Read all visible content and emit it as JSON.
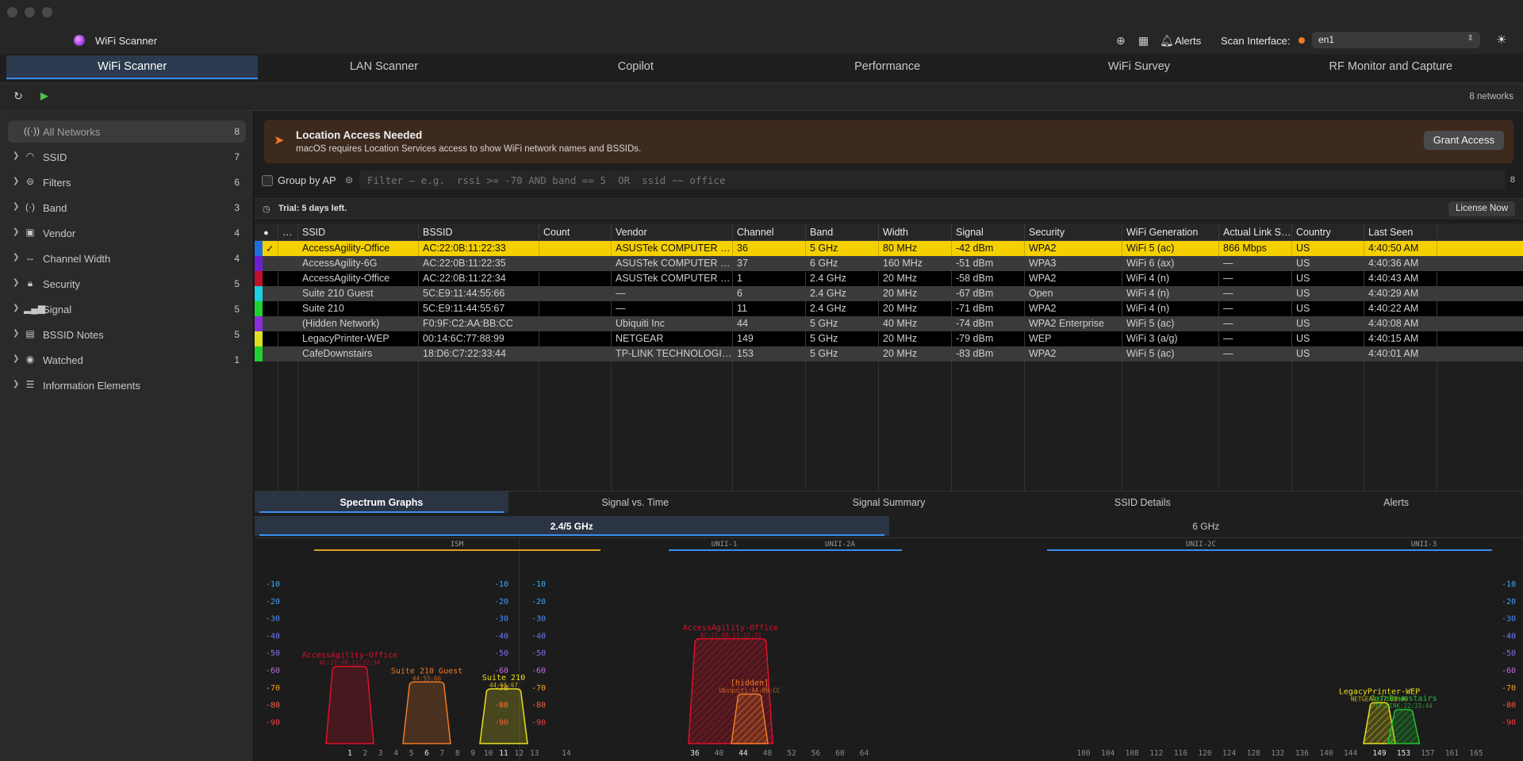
{
  "app": {
    "title": "WiFi Scanner",
    "alerts_label": "Alerts",
    "scan_interface_label": "Scan Interface:",
    "scan_interface_value": "en1"
  },
  "main_tabs": [
    "WiFi Scanner",
    "LAN Scanner",
    "Copilot",
    "Performance",
    "WiFi Survey",
    "RF Monitor and Capture"
  ],
  "toolbar": {
    "network_count": "8 networks"
  },
  "sidebar": {
    "items": [
      {
        "label": "All Networks",
        "count": "8",
        "icon": "antenna-icon"
      },
      {
        "label": "SSID",
        "count": "7",
        "icon": "wifi-icon"
      },
      {
        "label": "Filters",
        "count": "6",
        "icon": "filter-icon"
      },
      {
        "label": "Band",
        "count": "3",
        "icon": "antenna-icon"
      },
      {
        "label": "Vendor",
        "count": "4",
        "icon": "vendor-icon"
      },
      {
        "label": "Channel Width",
        "count": "4",
        "icon": "width-icon"
      },
      {
        "label": "Security",
        "count": "5",
        "icon": "lock-icon"
      },
      {
        "label": "Signal",
        "count": "5",
        "icon": "signal-bars-icon"
      },
      {
        "label": "BSSID Notes",
        "count": "5",
        "icon": "notes-icon"
      },
      {
        "label": "Watched",
        "count": "1",
        "icon": "eye-icon"
      },
      {
        "label": "Information Elements",
        "count": "",
        "icon": "list-icon"
      }
    ]
  },
  "location_banner": {
    "title": "Location Access Needed",
    "subtitle": "macOS requires Location Services access to show WiFi network names and BSSIDs.",
    "button": "Grant Access"
  },
  "filter": {
    "group_by_ap_label": "Group by AP",
    "placeholder": "Filter — e.g.  rssi >= -70 AND band == 5  OR  ssid ~~ office",
    "count": "8"
  },
  "trial": {
    "text": "Trial: 5 days left.",
    "button": "License Now"
  },
  "table": {
    "columns": [
      "",
      "…",
      "SSID",
      "BSSID",
      "Count",
      "Vendor",
      "Channel",
      "Band",
      "Width",
      "Signal",
      "Security",
      "WiFi Generation",
      "Actual Link S…",
      "Country",
      "Last Seen"
    ],
    "rows": [
      {
        "color": "#1e6fd9",
        "check": "✓",
        "ssid": "AccessAgility-Office",
        "bssid": "AC:22:0B:11:22:33",
        "count": "",
        "vendor": "ASUSTek COMPUTER INC.",
        "channel": "36",
        "band": "5 GHz",
        "width": "80 MHz",
        "signal": "-42 dBm",
        "security": "WPA2",
        "gen": "WiFi 5 (ac)",
        "link": "866 Mbps",
        "country": "US",
        "seen": "4:40:50 AM"
      },
      {
        "color": "#6a1fd0",
        "check": "",
        "ssid": "AccessAgility-6G",
        "bssid": "AC:22:0B:11:22:35",
        "count": "",
        "vendor": "ASUSTek COMPUTER INC.",
        "channel": "37",
        "band": "6 GHz",
        "width": "160 MHz",
        "signal": "-51 dBm",
        "security": "WPA3",
        "gen": "WiFi 6 (ax)",
        "link": "—",
        "country": "US",
        "seen": "4:40:36 AM"
      },
      {
        "color": "#c0102a",
        "check": "",
        "ssid": "AccessAgility-Office",
        "bssid": "AC:22:0B:11:22:34",
        "count": "",
        "vendor": "ASUSTek COMPUTER INC.",
        "channel": "1",
        "band": "2.4 GHz",
        "width": "20 MHz",
        "signal": "-58 dBm",
        "security": "WPA2",
        "gen": "WiFi 4 (n)",
        "link": "—",
        "country": "US",
        "seen": "4:40:43 AM"
      },
      {
        "color": "#1ad0e0",
        "check": "",
        "ssid": "Suite 210 Guest",
        "bssid": "5C:E9:11:44:55:66",
        "count": "",
        "vendor": "—",
        "channel": "6",
        "band": "2.4 GHz",
        "width": "20 MHz",
        "signal": "-67 dBm",
        "security": "Open",
        "gen": "WiFi 4 (n)",
        "link": "—",
        "country": "US",
        "seen": "4:40:29 AM"
      },
      {
        "color": "#20d030",
        "check": "",
        "ssid": "Suite 210",
        "bssid": "5C:E9:11:44:55:67",
        "count": "",
        "vendor": "—",
        "channel": "11",
        "band": "2.4 GHz",
        "width": "20 MHz",
        "signal": "-71 dBm",
        "security": "WPA2",
        "gen": "WiFi 4 (n)",
        "link": "—",
        "country": "US",
        "seen": "4:40:22 AM"
      },
      {
        "color": "#8a2fd8",
        "check": "",
        "ssid": "(Hidden Network)",
        "bssid": "F0:9F:C2:AA:BB:CC",
        "count": "",
        "vendor": "Ubiquiti Inc",
        "channel": "44",
        "band": "5 GHz",
        "width": "40 MHz",
        "signal": "-74 dBm",
        "security": "WPA2 Enterprise",
        "gen": "WiFi 5 (ac)",
        "link": "—",
        "country": "US",
        "seen": "4:40:08 AM"
      },
      {
        "color": "#e0e020",
        "check": "",
        "ssid": "LegacyPrinter-WEP",
        "bssid": "00:14:6C:77:88:99",
        "count": "",
        "vendor": "NETGEAR",
        "channel": "149",
        "band": "5 GHz",
        "width": "20 MHz",
        "signal": "-79 dBm",
        "security": "WEP",
        "gen": "WiFi 3 (a/g)",
        "link": "—",
        "country": "US",
        "seen": "4:40:15 AM"
      },
      {
        "color": "#20d030",
        "check": "",
        "ssid": "CafeDownstairs",
        "bssid": "18:D6:C7:22:33:44",
        "count": "",
        "vendor": "TP-LINK TECHNOLOGIES",
        "channel": "153",
        "band": "5 GHz",
        "width": "20 MHz",
        "signal": "-83 dBm",
        "security": "WPA2",
        "gen": "WiFi 5 (ac)",
        "link": "—",
        "country": "US",
        "seen": "4:40:01 AM"
      }
    ]
  },
  "bottom_tabs": [
    "Spectrum Graphs",
    "Signal vs. Time",
    "Signal Summary",
    "SSID Details",
    "Alerts"
  ],
  "band_tabs": [
    "2.4/5 GHz",
    "6 GHz"
  ],
  "spectrum": {
    "dbm_ticks": [
      -10,
      -20,
      -30,
      -40,
      -50,
      -60,
      -70,
      -80,
      -90
    ],
    "band_labels_24": [
      "ISM"
    ],
    "band_labels_5": [
      "UNII-1",
      "UNII-2A",
      "UNII-2C",
      "UNII-3"
    ],
    "channels_24": [
      1,
      2,
      3,
      4,
      5,
      6,
      7,
      8,
      9,
      10,
      11,
      12,
      13,
      14
    ],
    "channels_5": [
      36,
      40,
      44,
      48,
      52,
      56,
      60,
      64,
      100,
      104,
      108,
      112,
      116,
      120,
      124,
      128,
      132,
      136,
      140,
      144,
      149,
      153,
      157,
      161,
      165
    ],
    "networks_24": [
      {
        "name": "AccessAgility-Office",
        "sub": "AC:22:0B:11:22:34",
        "channel": 1,
        "rssi": -58,
        "color": "#e0102a"
      },
      {
        "name": "Suite 210 Guest",
        "sub": "44:55:66",
        "channel": 6,
        "rssi": -67,
        "color": "#f07a28"
      },
      {
        "name": "Suite 210",
        "sub": "44:55:67",
        "channel": 11,
        "rssi": -71,
        "color": "#e8e020"
      }
    ],
    "networks_5": [
      {
        "name": "AccessAgility-Office",
        "sub": "AC:22:0B:11:22:33",
        "channel": 36,
        "width": 80,
        "rssi": -42,
        "color": "#e0102a"
      },
      {
        "name": "[hidden]",
        "sub": "Ubiquiti:AA:BB:CC",
        "channel": 44,
        "width": 40,
        "rssi": -74,
        "color": "#f07a28"
      },
      {
        "name": "LegacyPrinter-WEP",
        "sub": "NETGEAR:77:88:99",
        "channel": 149,
        "width": 20,
        "rssi": -79,
        "color": "#e8e020"
      },
      {
        "name": "CafeDownstairs",
        "sub": "TP-LINK:22:33:44",
        "channel": 153,
        "width": 20,
        "rssi": -83,
        "color": "#20c030"
      }
    ]
  }
}
